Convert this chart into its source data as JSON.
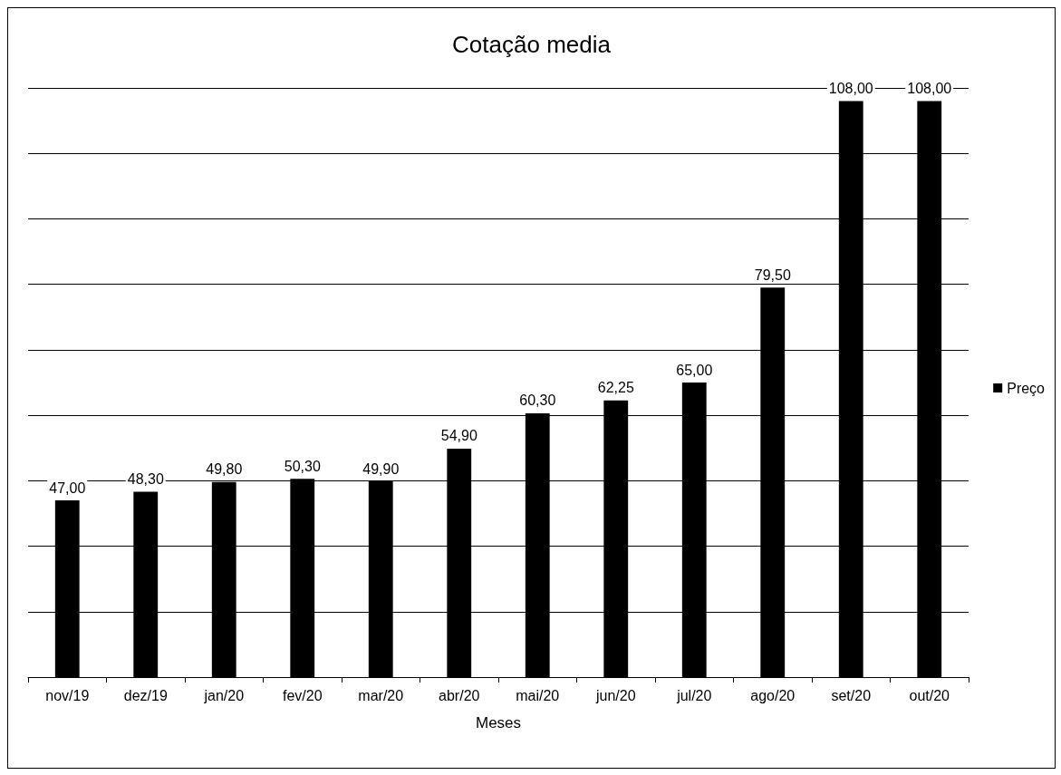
{
  "chart_data": {
    "type": "bar",
    "title": "Cotação media",
    "xlabel": "Meses",
    "categories": [
      "nov/19",
      "dez/19",
      "jan/20",
      "fev/20",
      "mar/20",
      "abr/20",
      "mai/20",
      "jun/20",
      "jul/20",
      "ago/20",
      "set/20",
      "out/20"
    ],
    "series": [
      {
        "name": "Preço",
        "color": "#000000",
        "values": [
          47.0,
          48.3,
          49.8,
          50.3,
          49.9,
          54.9,
          60.3,
          62.25,
          65.0,
          79.5,
          108.0,
          108.0
        ],
        "value_labels": [
          "47,00",
          "48,30",
          "49,80",
          "50,30",
          "49,90",
          "54,90",
          "60,30",
          "62,25",
          "65,00",
          "79,50",
          "108,00",
          "108,00"
        ]
      }
    ],
    "ylim": [
      20,
      110
    ],
    "yticks": [
      20,
      30,
      40,
      50,
      60,
      70,
      80,
      90,
      100,
      110
    ],
    "tick_labels": "x",
    "grid": "y",
    "legend": "right"
  }
}
